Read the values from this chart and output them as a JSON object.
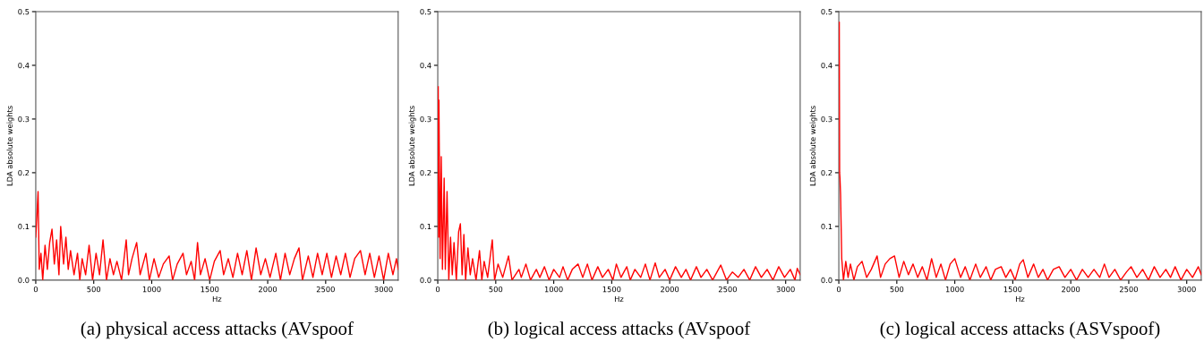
{
  "chart_data": [
    {
      "type": "line",
      "xlabel": "Hz",
      "ylabel": "LDA absolute weights",
      "xlim": [
        0,
        3125
      ],
      "ylim": [
        0,
        0.5
      ],
      "xticks": [
        0,
        500,
        1000,
        1500,
        2000,
        2500,
        3000
      ],
      "yticks": [
        {
          "value": 0,
          "label": "0.0"
        },
        {
          "value": 0.1,
          "label": "0.1"
        },
        {
          "value": 0.2,
          "label": "0.2"
        },
        {
          "value": 0.3,
          "label": "0.3"
        },
        {
          "value": 0.4,
          "label": "0.4"
        },
        {
          "value": 0.5,
          "label": "0.5"
        }
      ],
      "grid": false,
      "annotations": [
        "(a) physical access attacks (AVspoof"
      ],
      "series": [
        {
          "color": "#ff0000",
          "x": [
            0,
            10,
            20,
            30,
            45,
            60,
            80,
            100,
            120,
            140,
            160,
            180,
            200,
            215,
            240,
            260,
            280,
            300,
            330,
            360,
            380,
            400,
            430,
            460,
            490,
            520,
            550,
            580,
            610,
            640,
            670,
            700,
            740,
            780,
            800,
            830,
            870,
            900,
            950,
            980,
            1020,
            1060,
            1100,
            1150,
            1180,
            1220,
            1270,
            1300,
            1340,
            1370,
            1395,
            1420,
            1460,
            1500,
            1540,
            1590,
            1620,
            1660,
            1700,
            1740,
            1780,
            1820,
            1860,
            1900,
            1940,
            1980,
            2020,
            2070,
            2110,
            2150,
            2190,
            2230,
            2270,
            2300,
            2350,
            2390,
            2430,
            2470,
            2510,
            2550,
            2590,
            2630,
            2670,
            2710,
            2750,
            2800,
            2840,
            2880,
            2920,
            2960,
            3000,
            3040,
            3080,
            3110,
            3125
          ],
          "values": [
            0.08,
            0.12,
            0.165,
            0.02,
            0.05,
            0.0,
            0.065,
            0.02,
            0.07,
            0.095,
            0.03,
            0.075,
            0.01,
            0.1,
            0.03,
            0.08,
            0.02,
            0.055,
            0.01,
            0.05,
            0.0,
            0.04,
            0.01,
            0.065,
            0.0,
            0.05,
            0.01,
            0.075,
            0.0,
            0.04,
            0.01,
            0.035,
            0.0,
            0.075,
            0.01,
            0.04,
            0.07,
            0.01,
            0.05,
            0.0,
            0.04,
            0.005,
            0.03,
            0.045,
            0.0,
            0.03,
            0.05,
            0.01,
            0.035,
            0.0,
            0.07,
            0.01,
            0.04,
            0.0,
            0.035,
            0.055,
            0.01,
            0.04,
            0.005,
            0.05,
            0.01,
            0.055,
            0.0,
            0.06,
            0.01,
            0.04,
            0.005,
            0.05,
            0.0,
            0.05,
            0.01,
            0.04,
            0.06,
            0.0,
            0.045,
            0.005,
            0.05,
            0.01,
            0.05,
            0.005,
            0.045,
            0.01,
            0.05,
            0.005,
            0.04,
            0.055,
            0.01,
            0.05,
            0.005,
            0.045,
            0.0,
            0.05,
            0.01,
            0.04,
            0.02
          ]
        }
      ]
    },
    {
      "type": "line",
      "xlabel": "Hz",
      "ylabel": "LDA absolute weights",
      "xlim": [
        0,
        3125
      ],
      "ylim": [
        0,
        0.5
      ],
      "xticks": [
        0,
        500,
        1000,
        1500,
        2000,
        2500,
        3000
      ],
      "yticks": [
        {
          "value": 0,
          "label": "0.0"
        },
        {
          "value": 0.1,
          "label": "0.1"
        },
        {
          "value": 0.2,
          "label": "0.2"
        },
        {
          "value": 0.3,
          "label": "0.3"
        },
        {
          "value": 0.4,
          "label": "0.4"
        },
        {
          "value": 0.5,
          "label": "0.5"
        }
      ],
      "grid": false,
      "annotations": [
        "(b) logical access attacks (AVspoof"
      ],
      "series": [
        {
          "color": "#ff0000",
          "x": [
            4,
            7,
            10,
            20,
            30,
            40,
            55,
            65,
            80,
            95,
            110,
            125,
            140,
            160,
            180,
            195,
            210,
            225,
            240,
            260,
            280,
            300,
            330,
            360,
            380,
            400,
            430,
            470,
            490,
            520,
            560,
            610,
            640,
            700,
            720,
            760,
            800,
            850,
            880,
            920,
            960,
            1000,
            1050,
            1080,
            1120,
            1160,
            1210,
            1250,
            1290,
            1330,
            1380,
            1420,
            1470,
            1510,
            1540,
            1580,
            1630,
            1660,
            1700,
            1750,
            1790,
            1830,
            1875,
            1910,
            1960,
            2000,
            2050,
            2100,
            2140,
            2180,
            2230,
            2270,
            2320,
            2370,
            2420,
            2440,
            2490,
            2540,
            2590,
            2640,
            2690,
            2740,
            2790,
            2840,
            2890,
            2940,
            2990,
            3040,
            3080,
            3100,
            3125
          ],
          "values": [
            0.36,
            0.08,
            0.335,
            0.04,
            0.23,
            0.02,
            0.19,
            0.02,
            0.165,
            0.0,
            0.08,
            0.01,
            0.07,
            0.0,
            0.09,
            0.105,
            0.01,
            0.085,
            0.0,
            0.06,
            0.01,
            0.04,
            0.0,
            0.055,
            0.0,
            0.035,
            0.005,
            0.075,
            0.0,
            0.03,
            0.005,
            0.045,
            0.0,
            0.02,
            0.005,
            0.03,
            0.0,
            0.02,
            0.005,
            0.025,
            0.0,
            0.02,
            0.005,
            0.025,
            0.0,
            0.02,
            0.03,
            0.005,
            0.03,
            0.0,
            0.025,
            0.005,
            0.02,
            0.0,
            0.03,
            0.005,
            0.025,
            0.0,
            0.02,
            0.005,
            0.03,
            0.0,
            0.032,
            0.005,
            0.02,
            0.0,
            0.025,
            0.005,
            0.02,
            0.0,
            0.025,
            0.005,
            0.02,
            0.0,
            0.02,
            0.028,
            0.0,
            0.015,
            0.005,
            0.02,
            0.0,
            0.025,
            0.005,
            0.02,
            0.0,
            0.025,
            0.005,
            0.02,
            0.0,
            0.022,
            0.01
          ]
        }
      ]
    },
    {
      "type": "line",
      "xlabel": "Hz",
      "ylabel": "LDA absolute weights",
      "xlim": [
        0,
        3125
      ],
      "ylim": [
        0,
        0.5
      ],
      "xticks": [
        0,
        500,
        1000,
        1500,
        2000,
        2500,
        3000
      ],
      "yticks": [
        {
          "value": 0,
          "label": "0.0"
        },
        {
          "value": 0.1,
          "label": "0.1"
        },
        {
          "value": 0.2,
          "label": "0.2"
        },
        {
          "value": 0.3,
          "label": "0.3"
        },
        {
          "value": 0.4,
          "label": "0.4"
        },
        {
          "value": 0.5,
          "label": "0.5"
        }
      ],
      "grid": false,
      "annotations": [
        "(c) logical access attacks (ASVspoof)"
      ],
      "series": [
        {
          "color": "#ff0000",
          "x": [
            4,
            7,
            10,
            15,
            25,
            40,
            60,
            80,
            100,
            130,
            160,
            200,
            240,
            280,
            330,
            360,
            400,
            440,
            480,
            520,
            560,
            600,
            640,
            680,
            720,
            760,
            800,
            840,
            880,
            920,
            960,
            1000,
            1050,
            1090,
            1130,
            1180,
            1220,
            1270,
            1310,
            1350,
            1400,
            1440,
            1480,
            1520,
            1560,
            1590,
            1630,
            1680,
            1720,
            1760,
            1800,
            1850,
            1900,
            1950,
            2000,
            2050,
            2100,
            2150,
            2200,
            2250,
            2290,
            2330,
            2380,
            2430,
            2480,
            2520,
            2570,
            2620,
            2670,
            2720,
            2770,
            2820,
            2860,
            2900,
            2950,
            3000,
            3050,
            3100,
            3125
          ],
          "values": [
            0.48,
            0.2,
            0.19,
            0.16,
            0.04,
            0.0,
            0.035,
            0.005,
            0.03,
            0.0,
            0.025,
            0.035,
            0.005,
            0.02,
            0.045,
            0.005,
            0.03,
            0.04,
            0.045,
            0.005,
            0.035,
            0.01,
            0.03,
            0.005,
            0.025,
            0.0,
            0.04,
            0.005,
            0.03,
            0.0,
            0.03,
            0.04,
            0.005,
            0.025,
            0.0,
            0.03,
            0.005,
            0.025,
            0.0,
            0.02,
            0.025,
            0.005,
            0.02,
            0.0,
            0.03,
            0.038,
            0.005,
            0.03,
            0.005,
            0.02,
            0.0,
            0.02,
            0.025,
            0.005,
            0.02,
            0.0,
            0.02,
            0.005,
            0.02,
            0.005,
            0.03,
            0.005,
            0.02,
            0.0,
            0.015,
            0.025,
            0.005,
            0.02,
            0.0,
            0.025,
            0.005,
            0.02,
            0.005,
            0.025,
            0.0,
            0.02,
            0.005,
            0.025,
            0.01
          ]
        }
      ]
    }
  ]
}
